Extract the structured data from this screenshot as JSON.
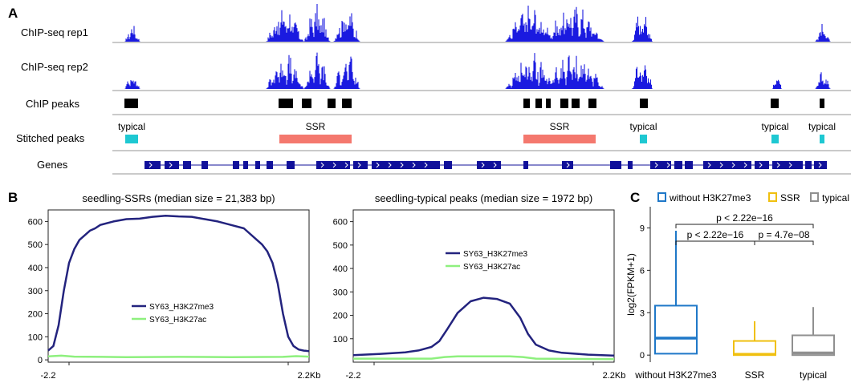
{
  "panels": {
    "a": "A",
    "b": "B",
    "c": "C"
  },
  "colors": {
    "track": "#1a1ae0",
    "peak": "#000000",
    "typical": "#1ec8d2",
    "ssr": "#f4786e",
    "gene": "#10109a",
    "h3k27me3": "#23237e",
    "h3k27ac": "#8ef07e",
    "box_without": "#1f78c8",
    "box_ssr": "#f0c010",
    "box_typical": "#909090"
  },
  "tracks": [
    {
      "label": "ChIP-seq rep1",
      "clusters": [
        [
          165,
          2
        ],
        [
          355,
          6
        ],
        [
          395,
          4
        ],
        [
          432,
          4
        ],
        [
          660,
          8
        ],
        [
          715,
          10
        ],
        [
          800,
          3
        ],
        [
          1025,
          2
        ]
      ]
    },
    {
      "label": "ChIP-seq rep2",
      "clusters": [
        [
          165,
          2
        ],
        [
          355,
          6
        ],
        [
          395,
          4
        ],
        [
          432,
          4
        ],
        [
          660,
          8
        ],
        [
          715,
          10
        ],
        [
          800,
          3
        ],
        [
          968,
          1
        ],
        [
          1025,
          2
        ]
      ]
    }
  ],
  "chip_peaks": {
    "label": "ChIP peaks",
    "peaks": [
      [
        155,
        17
      ],
      [
        347,
        18
      ],
      [
        376,
        12
      ],
      [
        408,
        10
      ],
      [
        426,
        12
      ],
      [
        652,
        8
      ],
      [
        667,
        8
      ],
      [
        680,
        6
      ],
      [
        698,
        10
      ],
      [
        712,
        10
      ],
      [
        733,
        10
      ],
      [
        797,
        10
      ],
      [
        960,
        10
      ],
      [
        1021,
        6
      ]
    ]
  },
  "stitched": {
    "label": "Stitched peaks",
    "items": [
      {
        "name": "typical",
        "kind": "typical",
        "start": 156,
        "end": 172
      },
      {
        "name": "SSR",
        "kind": "ssr",
        "start": 348,
        "end": 438
      },
      {
        "name": "SSR",
        "kind": "ssr",
        "start": 652,
        "end": 742
      },
      {
        "name": "typical",
        "kind": "typical",
        "start": 797,
        "end": 806
      },
      {
        "name": "typical",
        "kind": "typical",
        "start": 961,
        "end": 970
      },
      {
        "name": "typical",
        "kind": "typical",
        "start": 1021,
        "end": 1027
      }
    ]
  },
  "genes": {
    "label": "Genes",
    "blocks": [
      [
        180,
        20
      ],
      [
        205,
        18
      ],
      [
        228,
        10
      ],
      [
        251,
        8
      ],
      [
        290,
        8
      ],
      [
        303,
        6
      ],
      [
        318,
        6
      ],
      [
        332,
        8
      ],
      [
        357,
        10
      ],
      [
        394,
        42
      ],
      [
        440,
        18
      ],
      [
        463,
        85
      ],
      [
        553,
        10
      ],
      [
        594,
        30
      ],
      [
        652,
        6
      ],
      [
        700,
        14
      ],
      [
        760,
        8
      ],
      [
        768,
        6
      ],
      [
        782,
        6
      ],
      [
        810,
        26
      ],
      [
        840,
        10
      ],
      [
        853,
        10
      ],
      [
        876,
        60
      ],
      [
        940,
        18
      ],
      [
        962,
        38
      ],
      [
        1003,
        8
      ],
      [
        1014,
        16
      ]
    ]
  },
  "chart_data": [
    {
      "type": "line",
      "title": "seedling-SSRs (median size = 21,383 bp)",
      "x_tick_labels": [
        "-2.2",
        "2.2Kb"
      ],
      "yticks": [
        0,
        100,
        200,
        300,
        400,
        500,
        600
      ],
      "ylim": [
        -10,
        650
      ],
      "series": [
        {
          "name": "SY63_H3K27me3",
          "x": [
            0,
            0.02,
            0.04,
            0.06,
            0.08,
            0.1,
            0.12,
            0.14,
            0.16,
            0.18,
            0.2,
            0.25,
            0.3,
            0.35,
            0.4,
            0.45,
            0.5,
            0.55,
            0.6,
            0.65,
            0.7,
            0.75,
            0.8,
            0.82,
            0.84,
            0.86,
            0.88,
            0.9,
            0.92,
            0.94,
            0.96,
            0.98,
            1
          ],
          "y": [
            40,
            60,
            150,
            300,
            420,
            480,
            520,
            540,
            560,
            570,
            585,
            600,
            610,
            612,
            620,
            625,
            622,
            620,
            610,
            600,
            585,
            570,
            520,
            500,
            470,
            420,
            330,
            200,
            100,
            60,
            45,
            40,
            38
          ]
        },
        {
          "name": "SY63_H3K27ac",
          "x": [
            0,
            0.05,
            0.1,
            0.3,
            0.5,
            0.7,
            0.9,
            0.95,
            1
          ],
          "y": [
            15,
            18,
            14,
            12,
            13,
            12,
            13,
            16,
            14
          ]
        }
      ]
    },
    {
      "type": "line",
      "title": "seedling-typical peaks (median size = 1972 bp)",
      "x_tick_labels": [
        "-2.2",
        "2.2Kb"
      ],
      "yticks": [
        100,
        200,
        300,
        400,
        500,
        600
      ],
      "ylim": [
        0,
        650
      ],
      "series": [
        {
          "name": "SY63_H3K27me3",
          "x": [
            0,
            0.1,
            0.2,
            0.25,
            0.3,
            0.33,
            0.36,
            0.4,
            0.45,
            0.5,
            0.55,
            0.6,
            0.64,
            0.67,
            0.7,
            0.75,
            0.8,
            0.9,
            1
          ],
          "y": [
            30,
            35,
            42,
            50,
            65,
            90,
            140,
            210,
            260,
            275,
            270,
            250,
            190,
            120,
            75,
            50,
            40,
            32,
            28
          ]
        },
        {
          "name": "SY63_H3K27ac",
          "x": [
            0,
            0.3,
            0.35,
            0.4,
            0.6,
            0.65,
            0.7,
            1
          ],
          "y": [
            15,
            15,
            22,
            25,
            25,
            22,
            15,
            13
          ]
        }
      ]
    },
    {
      "type": "box",
      "ylabel": "log2(FPKM+1)",
      "categories": [
        "without H3K27me3",
        "SSR",
        "typical"
      ],
      "legend": [
        "without H3K27me3",
        "SSR",
        "typical"
      ],
      "yticks": [
        0,
        3,
        6,
        9
      ],
      "ylim": [
        -0.5,
        10.5
      ],
      "boxes": [
        {
          "name": "without H3K27me3",
          "min": 0,
          "q1": 0.1,
          "median": 1.2,
          "q3": 3.5,
          "max": 8.8
        },
        {
          "name": "SSR",
          "min": 0,
          "q1": 0,
          "median": 0.05,
          "q3": 1.0,
          "max": 2.4
        },
        {
          "name": "typical",
          "min": 0,
          "q1": 0,
          "median": 0.15,
          "q3": 1.4,
          "max": 3.4
        }
      ],
      "comparisons": [
        {
          "label": "p < 2.22e−16",
          "from": 0,
          "to": 2,
          "level": 2
        },
        {
          "label": "p < 2.22e−16",
          "from": 0,
          "to": 1,
          "level": 1
        },
        {
          "label": "p = 4.7e−08",
          "from": 1,
          "to": 2,
          "level": 1
        }
      ]
    }
  ]
}
